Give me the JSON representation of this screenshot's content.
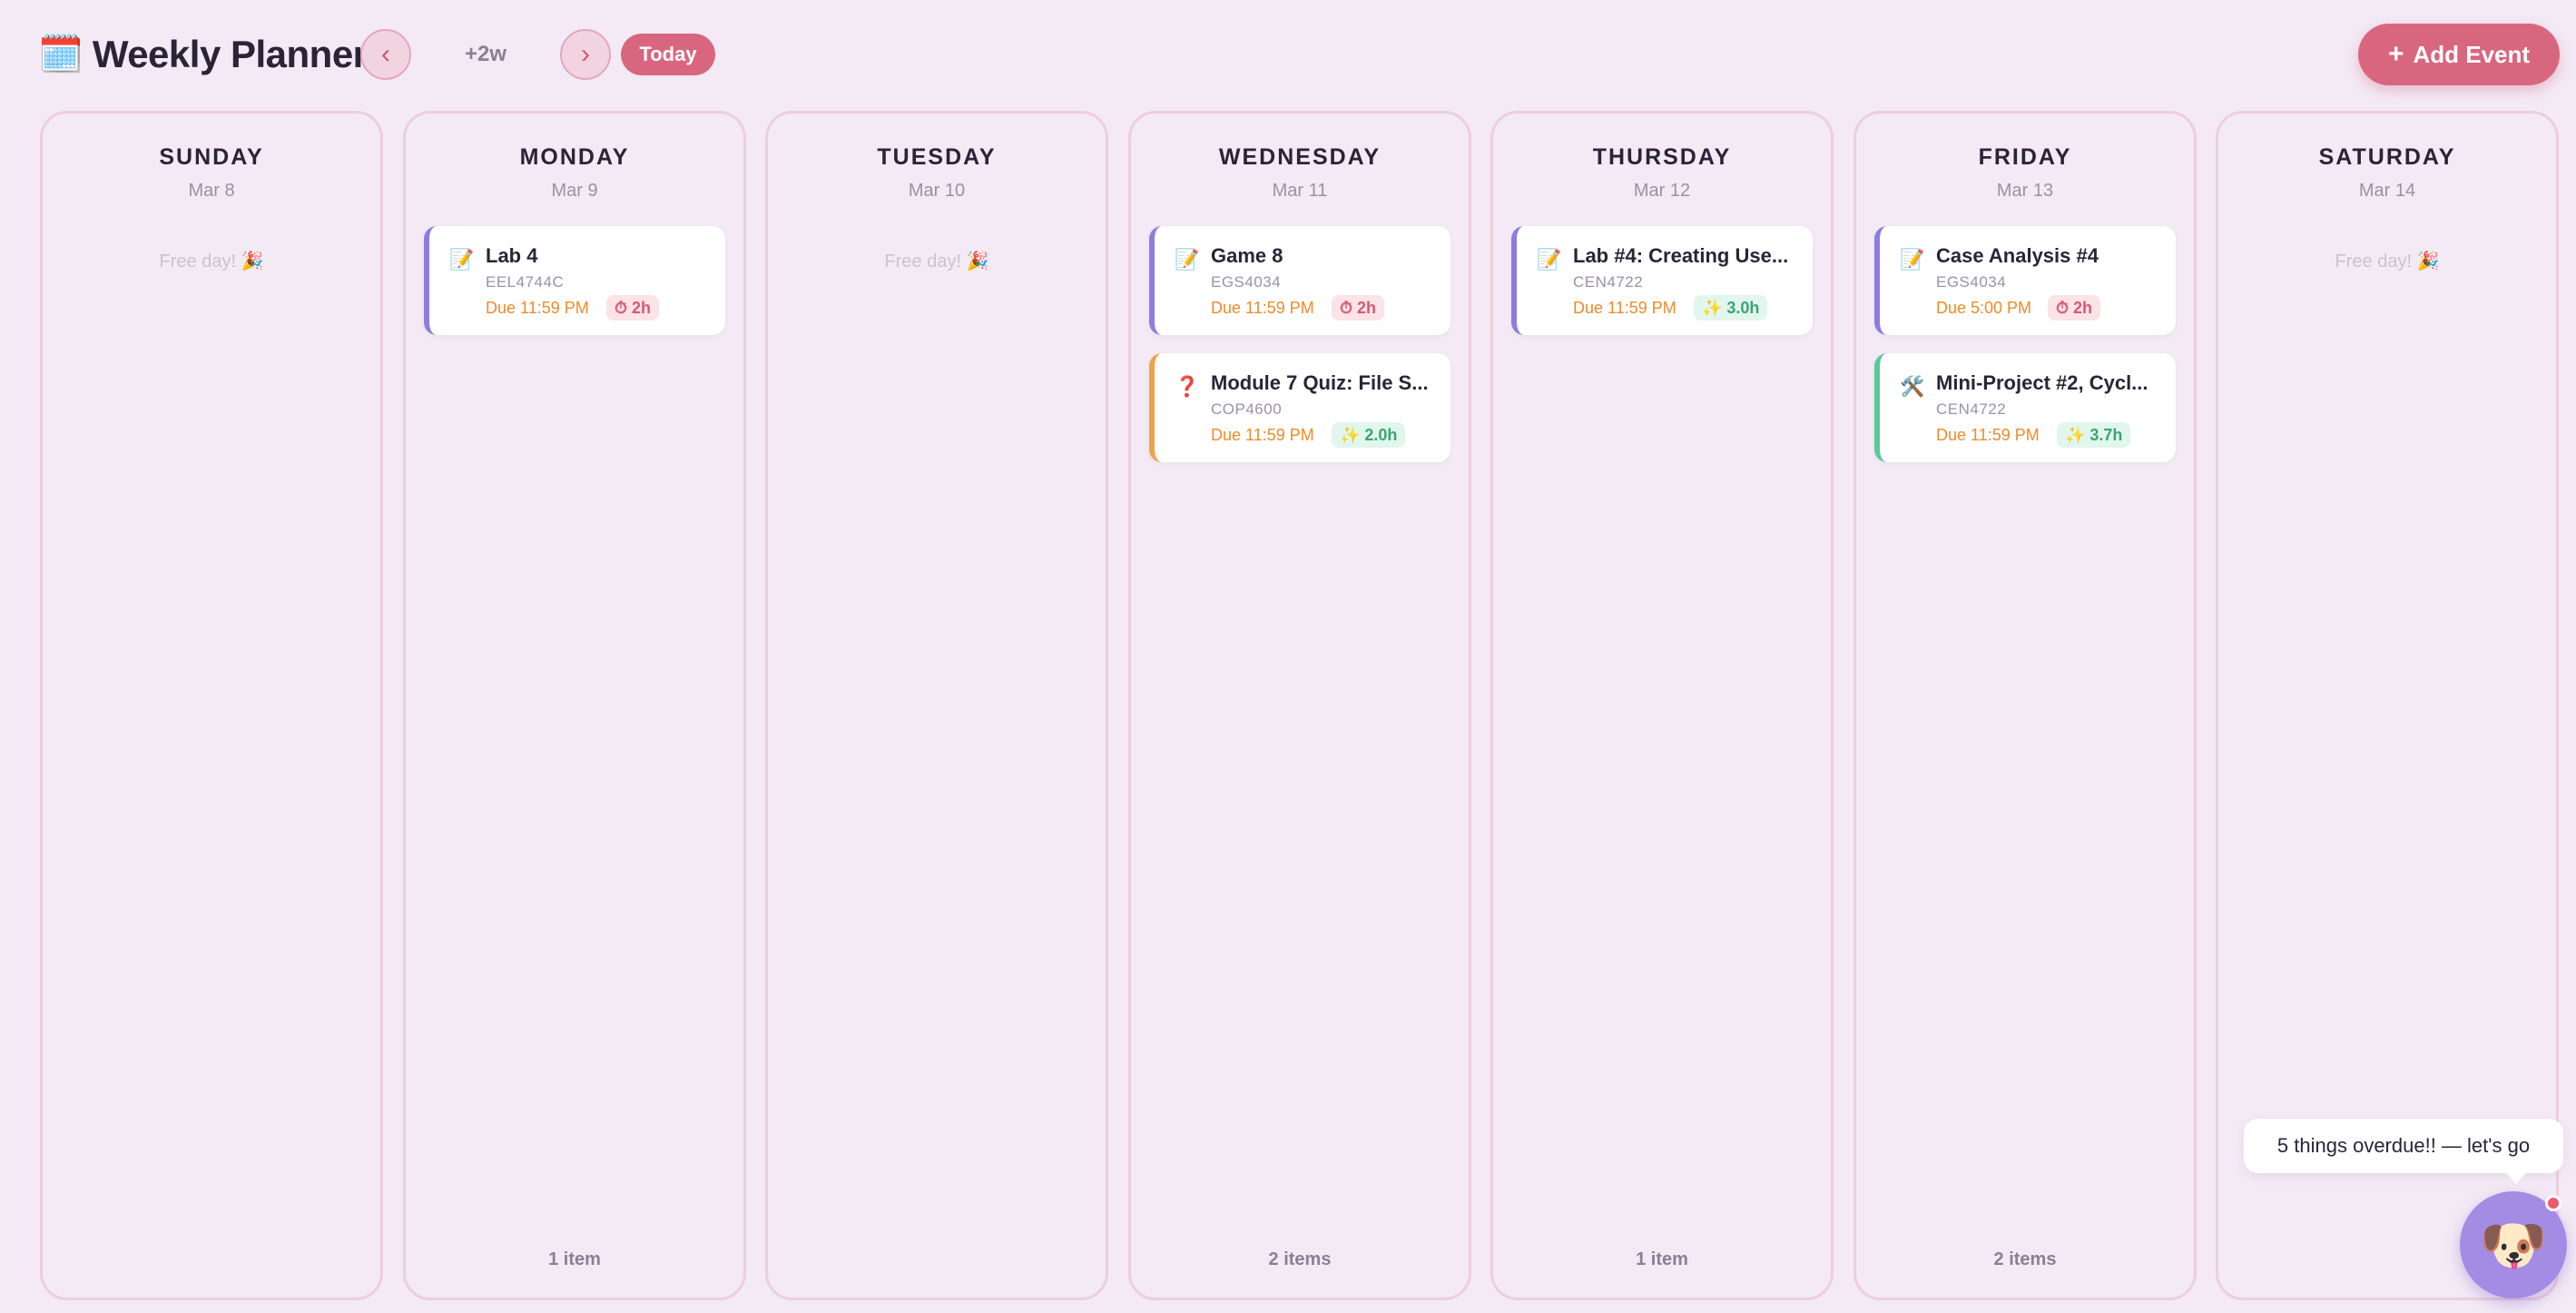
{
  "header": {
    "title_icon": "🗓️",
    "title": "Weekly Planner",
    "prev_label": "‹",
    "next_label": "›",
    "range_label": "+2w",
    "today_label": "Today",
    "add_event_plus": "+",
    "add_event_label": "Add Event"
  },
  "days": [
    {
      "name": "SUNDAY",
      "date": "Mar 8",
      "free": "Free day! 🎉",
      "count": ""
    },
    {
      "name": "MONDAY",
      "date": "Mar 9",
      "free": "",
      "count": "1 item",
      "events": [
        {
          "icon": "📝",
          "title": "Lab 4",
          "course": "EEL4744C",
          "due": "Due 11:59 PM",
          "badge": "⏱ 2h",
          "badge_type": "time",
          "kind": "assignment"
        }
      ]
    },
    {
      "name": "TUESDAY",
      "date": "Mar 10",
      "free": "Free day! 🎉",
      "count": ""
    },
    {
      "name": "WEDNESDAY",
      "date": "Mar 11",
      "free": "",
      "count": "2 items",
      "events": [
        {
          "icon": "📝",
          "title": "Game 8",
          "course": "EGS4034",
          "due": "Due 11:59 PM",
          "badge": "⏱ 2h",
          "badge_type": "time",
          "kind": "assignment"
        },
        {
          "icon": "❓",
          "title": "Module 7 Quiz: File S...",
          "course": "COP4600",
          "due": "Due 11:59 PM",
          "badge": "✨ 2.0h",
          "badge_type": "est",
          "kind": "quiz"
        }
      ]
    },
    {
      "name": "THURSDAY",
      "date": "Mar 12",
      "free": "",
      "count": "1 item",
      "events": [
        {
          "icon": "📝",
          "title": "Lab #4: Creating Use...",
          "course": "CEN4722",
          "due": "Due 11:59 PM",
          "badge": "✨ 3.0h",
          "badge_type": "est",
          "kind": "assignment"
        }
      ]
    },
    {
      "name": "FRIDAY",
      "date": "Mar 13",
      "free": "",
      "count": "2 items",
      "events": [
        {
          "icon": "📝",
          "title": "Case Analysis #4",
          "course": "EGS4034",
          "due": "Due 5:00 PM",
          "badge": "⏱ 2h",
          "badge_type": "time",
          "kind": "assignment"
        },
        {
          "icon": "🛠️",
          "title": "Mini-Project #2, Cycl...",
          "course": "CEN4722",
          "due": "Due 11:59 PM",
          "badge": "✨ 3.7h",
          "badge_type": "est",
          "kind": "project"
        }
      ]
    },
    {
      "name": "SATURDAY",
      "date": "Mar 14",
      "free": "Free day! 🎉",
      "count": ""
    }
  ],
  "mascot": {
    "bubble_text": "5 things overdue!! — let's go",
    "icon": "🐶",
    "icon_name": "dog-mascot-icon",
    "notification_dot": true
  },
  "colors": {
    "accent": "#d9667f",
    "assignment": "#8e7ce0",
    "quiz": "#f0a24a",
    "project": "#5cc99b",
    "due": "#f08a2a"
  }
}
